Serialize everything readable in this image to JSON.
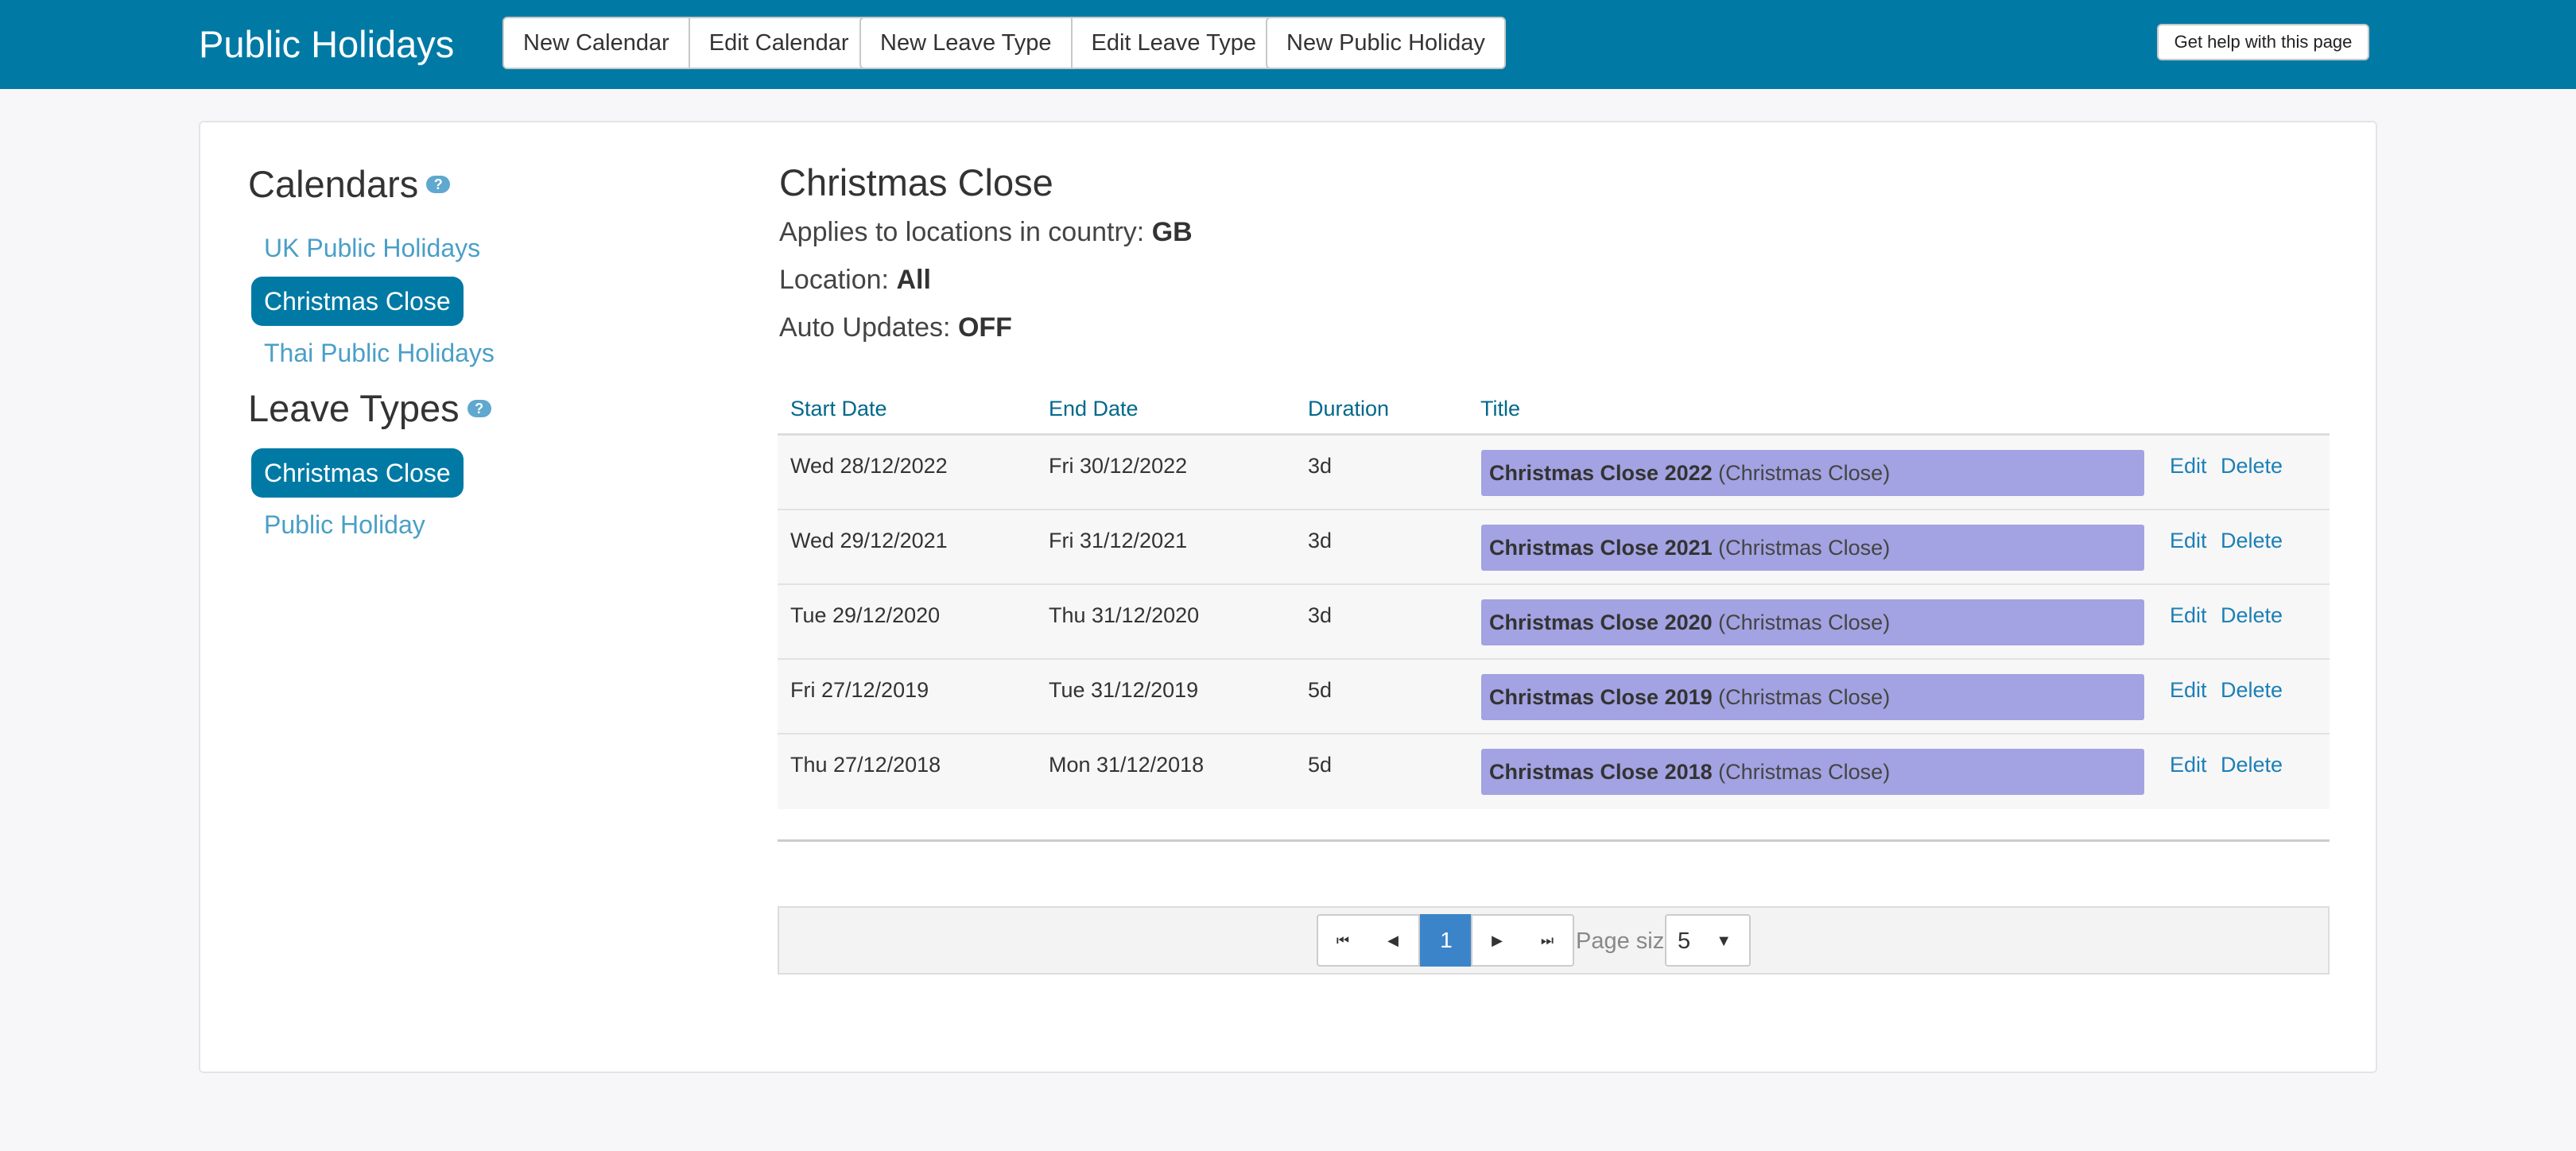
{
  "header": {
    "title": "Public Holidays",
    "buttons": {
      "new_calendar": "New Calendar",
      "edit_calendar": "Edit Calendar",
      "new_leave_type": "New Leave Type",
      "edit_leave_type": "Edit Leave Type",
      "new_public_holiday": "New Public Holiday"
    },
    "help": "Get help with this page"
  },
  "sidebar": {
    "calendars_heading": "Calendars",
    "calendars": [
      "UK Public Holidays",
      "Christmas Close",
      "Thai Public Holidays"
    ],
    "leave_types_heading": "Leave Types",
    "leave_types": [
      "Christmas Close",
      "Public Holiday"
    ],
    "help_glyph": "?"
  },
  "main": {
    "title": "Christmas Close",
    "country_label": "Applies to locations in country:",
    "country_value": "GB",
    "location_label": "Location:",
    "location_value": "All",
    "auto_updates_label": "Auto Updates:",
    "auto_updates_value": "OFF"
  },
  "table": {
    "headers": {
      "start": "Start Date",
      "end": "End Date",
      "duration": "Duration",
      "title": "Title"
    },
    "rows": [
      {
        "start": "Wed 28/12/2022",
        "end": "Fri 30/12/2022",
        "duration": "3d",
        "title": "Christmas Close 2022",
        "type": "(Christmas Close)",
        "edit": "Edit",
        "delete": "Delete"
      },
      {
        "start": "Wed 29/12/2021",
        "end": "Fri 31/12/2021",
        "duration": "3d",
        "title": "Christmas Close 2021",
        "type": "(Christmas Close)",
        "edit": "Edit",
        "delete": "Delete"
      },
      {
        "start": "Tue 29/12/2020",
        "end": "Thu 31/12/2020",
        "duration": "3d",
        "title": "Christmas Close 2020",
        "type": "(Christmas Close)",
        "edit": "Edit",
        "delete": "Delete"
      },
      {
        "start": "Fri 27/12/2019",
        "end": "Tue 31/12/2019",
        "duration": "5d",
        "title": "Christmas Close 2019",
        "type": "(Christmas Close)",
        "edit": "Edit",
        "delete": "Delete"
      },
      {
        "start": "Thu 27/12/2018",
        "end": "Mon 31/12/2018",
        "duration": "5d",
        "title": "Christmas Close 2018",
        "type": "(Christmas Close)",
        "edit": "Edit",
        "delete": "Delete"
      }
    ]
  },
  "pager": {
    "first_glyph": "⏮",
    "prev_glyph": "◀",
    "current_page": "1",
    "next_glyph": "▶",
    "last_glyph": "⏭",
    "page_size_label": "Page size:",
    "page_size_value": "5",
    "caret_glyph": "▼"
  },
  "colors": {
    "header_bg": "#007aa5",
    "pill_bg": "#007aa5",
    "title_bar_bg": "#a3a2e2",
    "link": "#4a9fc7",
    "active_page": "#3c84c9"
  }
}
